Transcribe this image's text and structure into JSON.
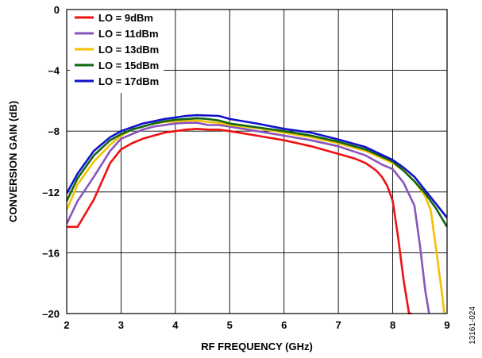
{
  "chart_data": {
    "type": "line",
    "title": "",
    "xlabel": "RF FREQUENCY (GHz)",
    "ylabel": "CONVERSION GAIN (dB)",
    "xlim": [
      2,
      9
    ],
    "ylim": [
      -20,
      0
    ],
    "x_ticks": [
      2,
      3,
      4,
      5,
      6,
      7,
      8,
      9
    ],
    "y_ticks": [
      0,
      -4,
      -8,
      -12,
      -16,
      -20
    ],
    "x_tick_labels": [
      "2",
      "3",
      "4",
      "5",
      "6",
      "7",
      "8",
      "9"
    ],
    "y_tick_labels": [
      "0",
      "–4",
      "–8",
      "–12",
      "–16",
      "–20"
    ],
    "grid": true,
    "legend_position": "top-left",
    "figure_id": "13161-024",
    "series": [
      {
        "name": "LO = 9dBm",
        "color": "#ee1111",
        "x": [
          2.0,
          2.2,
          2.5,
          2.8,
          3.0,
          3.2,
          3.4,
          3.6,
          3.8,
          4.0,
          4.2,
          4.4,
          4.6,
          4.8,
          5.0,
          5.5,
          6.0,
          6.5,
          7.0,
          7.3,
          7.5,
          7.7,
          7.8,
          7.9,
          8.0,
          8.1,
          8.2,
          8.3,
          8.35
        ],
        "y": [
          -14.3,
          -14.3,
          -12.5,
          -10.1,
          -9.2,
          -8.8,
          -8.5,
          -8.3,
          -8.1,
          -8.0,
          -7.9,
          -7.85,
          -7.9,
          -7.9,
          -8.0,
          -8.3,
          -8.6,
          -9.0,
          -9.5,
          -9.8,
          -10.1,
          -10.6,
          -11.0,
          -11.6,
          -12.6,
          -15.0,
          -17.8,
          -20.0,
          -20.0
        ]
      },
      {
        "name": "LO = 11dBm",
        "color": "#8855bb",
        "x": [
          2.0,
          2.2,
          2.5,
          2.8,
          3.0,
          3.2,
          3.4,
          3.6,
          3.8,
          4.0,
          4.2,
          4.4,
          4.6,
          4.8,
          5.0,
          5.5,
          6.0,
          6.5,
          7.0,
          7.5,
          7.8,
          8.0,
          8.2,
          8.4,
          8.5,
          8.6,
          8.67
        ],
        "y": [
          -14.1,
          -12.6,
          -11.0,
          -9.3,
          -8.5,
          -8.2,
          -7.9,
          -7.7,
          -7.6,
          -7.5,
          -7.45,
          -7.45,
          -7.6,
          -7.6,
          -7.7,
          -8.0,
          -8.3,
          -8.6,
          -9.0,
          -9.6,
          -10.2,
          -10.5,
          -11.4,
          -12.9,
          -15.5,
          -18.5,
          -20.0
        ]
      },
      {
        "name": "LO = 13dBm",
        "color": "#f5c000",
        "x": [
          2.0,
          2.2,
          2.5,
          2.8,
          3.0,
          3.2,
          3.4,
          3.6,
          3.8,
          4.0,
          4.2,
          4.4,
          4.6,
          4.8,
          5.0,
          5.5,
          6.0,
          6.5,
          7.0,
          7.5,
          8.0,
          8.2,
          8.4,
          8.6,
          8.7,
          8.8,
          8.9,
          8.95
        ],
        "y": [
          -13.2,
          -11.5,
          -10.0,
          -8.9,
          -8.3,
          -7.9,
          -7.7,
          -7.5,
          -7.4,
          -7.35,
          -7.3,
          -7.3,
          -7.4,
          -7.45,
          -7.6,
          -7.8,
          -8.1,
          -8.4,
          -8.8,
          -9.3,
          -10.1,
          -10.6,
          -11.3,
          -12.3,
          -13.2,
          -15.8,
          -18.5,
          -20.0
        ]
      },
      {
        "name": "LO = 15dBm",
        "color": "#116611",
        "x": [
          2.0,
          2.2,
          2.5,
          2.8,
          3.0,
          3.2,
          3.4,
          3.6,
          3.8,
          4.0,
          4.2,
          4.4,
          4.6,
          4.8,
          5.0,
          5.5,
          6.0,
          6.5,
          7.0,
          7.5,
          8.0,
          8.2,
          8.4,
          8.6,
          8.8,
          9.0
        ],
        "y": [
          -12.6,
          -11.1,
          -9.6,
          -8.6,
          -8.2,
          -7.9,
          -7.7,
          -7.5,
          -7.35,
          -7.25,
          -7.2,
          -7.15,
          -7.2,
          -7.3,
          -7.5,
          -7.75,
          -8.0,
          -8.3,
          -8.7,
          -9.2,
          -10.0,
          -10.6,
          -11.3,
          -12.1,
          -13.1,
          -14.3
        ]
      },
      {
        "name": "LO = 17dBm",
        "color": "#1111cc",
        "x": [
          2.0,
          2.2,
          2.5,
          2.8,
          3.0,
          3.2,
          3.4,
          3.6,
          3.8,
          4.0,
          4.2,
          4.4,
          4.6,
          4.8,
          5.0,
          5.5,
          6.0,
          6.5,
          7.0,
          7.5,
          8.0,
          8.2,
          8.4,
          8.6,
          8.8,
          9.0
        ],
        "y": [
          -12.1,
          -10.8,
          -9.3,
          -8.4,
          -8.0,
          -7.75,
          -7.5,
          -7.35,
          -7.2,
          -7.1,
          -7.0,
          -6.95,
          -6.97,
          -7.0,
          -7.2,
          -7.5,
          -7.85,
          -8.1,
          -8.55,
          -9.05,
          -9.9,
          -10.4,
          -11.0,
          -11.9,
          -12.8,
          -13.7
        ]
      }
    ]
  }
}
